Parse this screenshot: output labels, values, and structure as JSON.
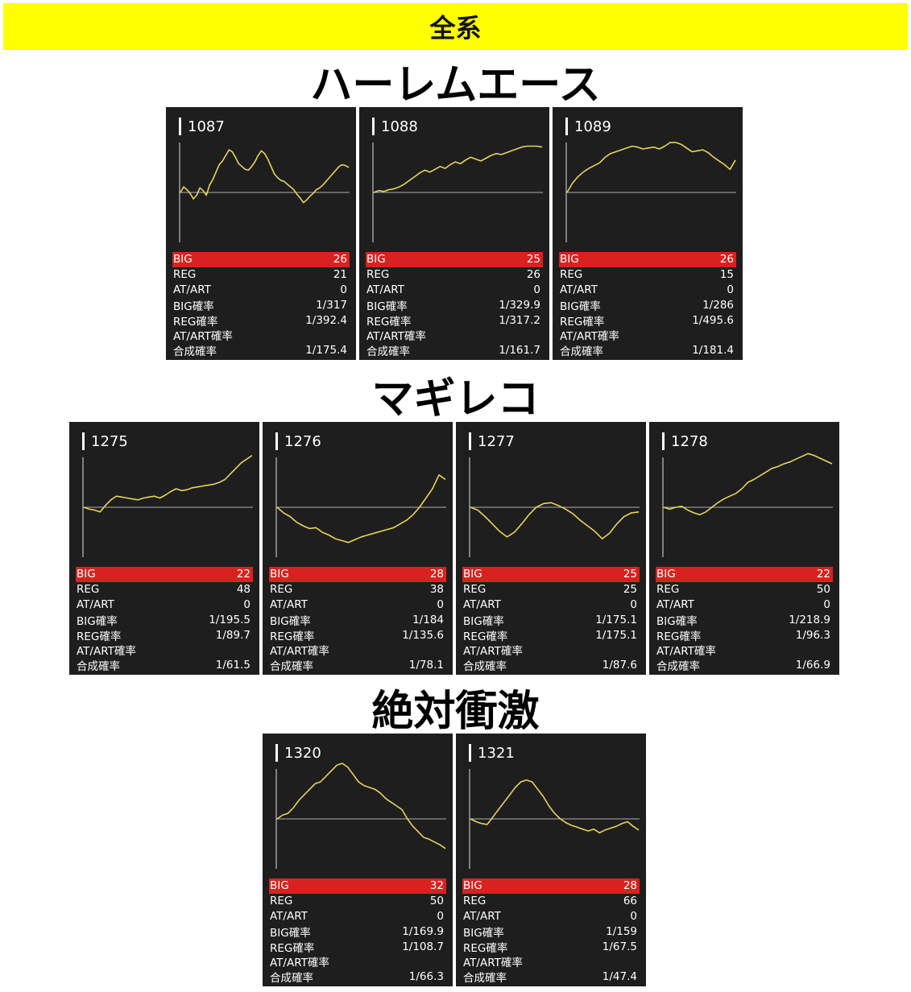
{
  "banner_title": "全系",
  "stat_labels": [
    "BIG",
    "REG",
    "AT/ART",
    "BIG確率",
    "REG確率",
    "AT/ART確率",
    "合成確率"
  ],
  "colors": {
    "banner": "#ffff00",
    "panel_bg": "#1e1e1e",
    "big_row": "#d9221f",
    "line": "#e8d35a",
    "axis": "#e0e0e0"
  },
  "sections": [
    {
      "title": "ハーレムエース",
      "machines": [
        {
          "id": "1087",
          "stats": [
            "26",
            "21",
            "0",
            "1/317",
            "1/392.4",
            "",
            "1/175.4"
          ],
          "trend": [
            0,
            6,
            3,
            -1,
            -7,
            -3,
            5,
            2,
            -3,
            8,
            14,
            22,
            30,
            34,
            40,
            46,
            44,
            38,
            31,
            28,
            25,
            24,
            28,
            33,
            40,
            45,
            42,
            36,
            28,
            20,
            16,
            13,
            12,
            9,
            6,
            3,
            -2,
            -6,
            -11,
            -8,
            -4,
            -1,
            3,
            5,
            8,
            12,
            16,
            20,
            24,
            28,
            30,
            29,
            27
          ]
        },
        {
          "id": "1088",
          "stats": [
            "25",
            "26",
            "0",
            "1/329.9",
            "1/317.2",
            "",
            "1/161.7"
          ],
          "trend": [
            0,
            2,
            1,
            3,
            4,
            6,
            9,
            13,
            17,
            21,
            24,
            22,
            25,
            28,
            26,
            30,
            33,
            31,
            35,
            38,
            36,
            34,
            37,
            40,
            42,
            41,
            43,
            45,
            47,
            49,
            50,
            50,
            50,
            49
          ]
        },
        {
          "id": "1089",
          "stats": [
            "26",
            "15",
            "0",
            "1/286",
            "1/495.6",
            "",
            "1/181.4"
          ],
          "trend": [
            0,
            10,
            17,
            22,
            26,
            29,
            32,
            38,
            42,
            44,
            46,
            48,
            50,
            49,
            47,
            48,
            49,
            47,
            50,
            54,
            54,
            52,
            48,
            44,
            45,
            46,
            43,
            38,
            34,
            30,
            25,
            35
          ]
        }
      ]
    },
    {
      "title": "マギレコ",
      "machines": [
        {
          "id": "1275",
          "stats": [
            "22",
            "48",
            "0",
            "1/195.5",
            "1/89.7",
            "",
            "1/61.5"
          ],
          "trend": [
            0,
            -2,
            -3,
            -5,
            2,
            8,
            12,
            11,
            10,
            9,
            8,
            10,
            11,
            12,
            10,
            13,
            17,
            20,
            18,
            19,
            21,
            22,
            23,
            24,
            25,
            27,
            30,
            36,
            42,
            48,
            52,
            56
          ]
        },
        {
          "id": "1276",
          "stats": [
            "28",
            "38",
            "0",
            "1/184",
            "1/135.6",
            "",
            "1/78.1"
          ],
          "trend": [
            0,
            -6,
            -10,
            -16,
            -20,
            -23,
            -22,
            -27,
            -30,
            -34,
            -36,
            -38,
            -35,
            -32,
            -30,
            -28,
            -26,
            -24,
            -22,
            -18,
            -14,
            -8,
            0,
            10,
            20,
            35,
            30
          ]
        },
        {
          "id": "1277",
          "stats": [
            "25",
            "25",
            "0",
            "1/175.1",
            "1/175.1",
            "",
            "1/87.6"
          ],
          "trend": [
            0,
            -3,
            -10,
            -18,
            -26,
            -32,
            -27,
            -18,
            -8,
            0,
            4,
            5,
            2,
            -2,
            -7,
            -14,
            -20,
            -26,
            -34,
            -28,
            -18,
            -10,
            -6,
            -5
          ]
        },
        {
          "id": "1278",
          "stats": [
            "22",
            "50",
            "0",
            "1/218.9",
            "1/96.3",
            "",
            "1/66.9"
          ],
          "trend": [
            0,
            -2,
            0,
            1,
            -3,
            -6,
            -8,
            -5,
            0,
            5,
            9,
            12,
            15,
            20,
            27,
            30,
            34,
            38,
            42,
            44,
            47,
            49,
            52,
            55,
            58,
            56,
            53,
            50,
            47
          ]
        }
      ]
    },
    {
      "title": "絶対衝激",
      "machines": [
        {
          "id": "1320",
          "stats": [
            "32",
            "50",
            "0",
            "1/169.9",
            "1/108.7",
            "",
            "1/66.3"
          ],
          "trend": [
            0,
            4,
            6,
            12,
            20,
            26,
            32,
            38,
            40,
            46,
            52,
            58,
            60,
            56,
            48,
            40,
            36,
            34,
            32,
            28,
            22,
            18,
            14,
            10,
            0,
            -8,
            -14,
            -20,
            -22,
            -25,
            -28,
            -32
          ]
        },
        {
          "id": "1321",
          "stats": [
            "28",
            "66",
            "0",
            "1/159",
            "1/67.5",
            "",
            "1/47.4"
          ],
          "trend": [
            0,
            -3,
            -5,
            -6,
            2,
            10,
            18,
            26,
            34,
            40,
            42,
            40,
            32,
            24,
            14,
            6,
            0,
            -4,
            -7,
            -9,
            -11,
            -13,
            -11,
            -15,
            -12,
            -10,
            -8,
            -5,
            -3,
            -8,
            -12
          ]
        }
      ]
    }
  ]
}
